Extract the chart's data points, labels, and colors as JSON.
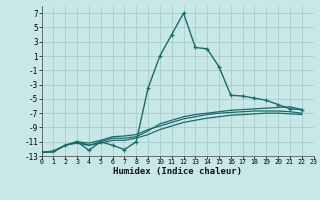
{
  "xlabel": "Humidex (Indice chaleur)",
  "bg_color": "#c8e8e8",
  "grid_color": "#a8cccc",
  "line_color": "#1a6b6b",
  "xlim": [
    0,
    23
  ],
  "ylim": [
    -13,
    8
  ],
  "xtick_vals": [
    0,
    1,
    2,
    3,
    4,
    5,
    6,
    7,
    8,
    9,
    10,
    11,
    12,
    13,
    14,
    15,
    16,
    17,
    18,
    19,
    20,
    21,
    22,
    23
  ],
  "ytick_vals": [
    -13,
    -11,
    -9,
    -7,
    -5,
    -3,
    -1,
    1,
    3,
    5,
    7
  ],
  "series": [
    {
      "x": [
        0,
        1,
        2,
        3,
        4,
        5,
        6,
        7,
        8,
        9,
        10,
        11,
        12,
        13,
        14,
        15,
        16,
        17,
        18,
        19,
        20,
        21,
        22
      ],
      "y": [
        -12.5,
        -12.3,
        -11.5,
        -11.0,
        -12.2,
        -11.0,
        -11.5,
        -12.1,
        -11.0,
        -3.5,
        1.0,
        4.0,
        7.0,
        2.2,
        2.0,
        -0.5,
        -4.5,
        -4.6,
        -4.9,
        -5.2,
        -5.8,
        -6.4,
        -6.5
      ],
      "marker": true,
      "lw": 1.0
    },
    {
      "x": [
        0,
        1,
        2,
        3,
        4,
        5,
        6,
        7,
        8,
        9,
        10,
        11,
        12,
        13,
        14,
        15,
        16,
        17,
        18,
        19,
        20,
        21,
        22
      ],
      "y": [
        -12.5,
        -12.4,
        -11.5,
        -11.0,
        -11.5,
        -11.0,
        -10.5,
        -10.5,
        -10.3,
        -9.5,
        -8.5,
        -8.0,
        -7.5,
        -7.2,
        -7.0,
        -6.8,
        -6.6,
        -6.5,
        -6.4,
        -6.3,
        -6.2,
        -6.1,
        -6.5
      ],
      "marker": false,
      "lw": 0.9
    },
    {
      "x": [
        0,
        1,
        2,
        3,
        4,
        5,
        6,
        7,
        8,
        9,
        10,
        11,
        12,
        13,
        14,
        15,
        16,
        17,
        18,
        19,
        20,
        21,
        22
      ],
      "y": [
        -12.5,
        -12.4,
        -11.5,
        -11.0,
        -11.2,
        -10.8,
        -10.3,
        -10.2,
        -10.0,
        -9.3,
        -8.8,
        -8.3,
        -7.8,
        -7.5,
        -7.2,
        -7.0,
        -6.9,
        -6.8,
        -6.7,
        -6.7,
        -6.7,
        -6.8,
        -7.0
      ],
      "marker": false,
      "lw": 0.9
    },
    {
      "x": [
        0,
        1,
        2,
        3,
        4,
        5,
        6,
        7,
        8,
        9,
        10,
        11,
        12,
        13,
        14,
        15,
        16,
        17,
        18,
        19,
        20,
        21,
        22
      ],
      "y": [
        -12.5,
        -12.4,
        -11.5,
        -11.2,
        -11.5,
        -11.2,
        -10.8,
        -10.8,
        -10.5,
        -10.0,
        -9.3,
        -8.8,
        -8.3,
        -8.0,
        -7.7,
        -7.5,
        -7.3,
        -7.2,
        -7.1,
        -7.0,
        -7.0,
        -7.1,
        -7.2
      ],
      "marker": false,
      "lw": 0.9
    }
  ]
}
